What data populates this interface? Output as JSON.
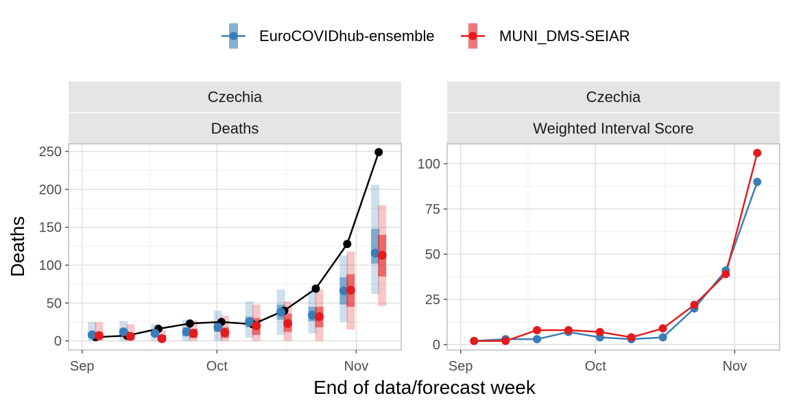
{
  "legend": {
    "items": [
      {
        "label": "EuroCOVIDhub-ensemble",
        "color": "#377eb8"
      },
      {
        "label": "MUNI_DMS-SEIAR",
        "color": "#e41a1c"
      }
    ]
  },
  "x_axis_title": "End of data/forecast week",
  "chart_data": [
    {
      "type": "line",
      "facet": [
        "Czechia",
        "Deaths"
      ],
      "ylabel": "Deaths",
      "xlabel": "End of data/forecast week",
      "x_ticks": [
        {
          "date": "2021-09-01",
          "label": "Sep"
        },
        {
          "date": "2021-10-01",
          "label": "Oct"
        },
        {
          "date": "2021-11-01",
          "label": "Nov"
        }
      ],
      "y_ticks": [
        0,
        50,
        100,
        150,
        200,
        250
      ],
      "xlim": [
        "2021-08-29",
        "2021-11-11"
      ],
      "ylim": [
        -12,
        260
      ],
      "grid": true,
      "observed": {
        "color": "#000000",
        "x": [
          "2021-09-04",
          "2021-09-11",
          "2021-09-18",
          "2021-09-25",
          "2021-10-02",
          "2021-10-09",
          "2021-10-16",
          "2021-10-23",
          "2021-10-30",
          "2021-11-06"
        ],
        "y": [
          5,
          7,
          16,
          23,
          25,
          22,
          40,
          69,
          128,
          249
        ]
      },
      "series": [
        {
          "name": "EuroCOVIDhub-ensemble",
          "color": "#377eb8",
          "x": [
            "2021-09-04",
            "2021-09-11",
            "2021-09-18",
            "2021-09-25",
            "2021-10-02",
            "2021-10-09",
            "2021-10-16",
            "2021-10-23",
            "2021-10-30",
            "2021-11-06"
          ],
          "median": [
            8,
            12,
            10,
            12,
            18,
            25,
            38,
            34,
            66,
            116
          ],
          "inner": [
            [
              5,
              11
            ],
            [
              8,
              16
            ],
            [
              6,
              14
            ],
            [
              6,
              18
            ],
            [
              12,
              26
            ],
            [
              18,
              32
            ],
            [
              28,
              48
            ],
            [
              26,
              45
            ],
            [
              48,
              84
            ],
            [
              102,
              148
            ]
          ],
          "outer": [
            [
              0,
              25
            ],
            [
              0,
              26
            ],
            [
              0,
              22
            ],
            [
              0,
              28
            ],
            [
              0,
              40
            ],
            [
              4,
              52
            ],
            [
              8,
              68
            ],
            [
              10,
              66
            ],
            [
              25,
              113
            ],
            [
              62,
              206
            ]
          ]
        },
        {
          "name": "MUNI_DMS-SEIAR",
          "color": "#e41a1c",
          "x": [
            "2021-09-04",
            "2021-09-11",
            "2021-09-18",
            "2021-09-25",
            "2021-10-02",
            "2021-10-09",
            "2021-10-16",
            "2021-10-23",
            "2021-10-30",
            "2021-11-06"
          ],
          "median": [
            7,
            6,
            3,
            10,
            11,
            20,
            23,
            32,
            67,
            113
          ],
          "inner": [
            [
              2,
              12
            ],
            [
              2,
              10
            ],
            [
              0,
              8
            ],
            [
              4,
              16
            ],
            [
              4,
              18
            ],
            [
              8,
              30
            ],
            [
              12,
              36
            ],
            [
              18,
              45
            ],
            [
              45,
              88
            ],
            [
              85,
              140
            ]
          ],
          "outer": [
            [
              0,
              25
            ],
            [
              0,
              22
            ],
            [
              0,
              14
            ],
            [
              0,
              27
            ],
            [
              0,
              33
            ],
            [
              0,
              48
            ],
            [
              0,
              52
            ],
            [
              0,
              68
            ],
            [
              15,
              118
            ],
            [
              46,
              179
            ]
          ]
        }
      ]
    },
    {
      "type": "line",
      "facet": [
        "Czechia",
        "Weighted Interval Score"
      ],
      "ylabel": "",
      "xlabel": "End of data/forecast week",
      "x_ticks": [
        {
          "date": "2021-09-01",
          "label": "Sep"
        },
        {
          "date": "2021-10-01",
          "label": "Oct"
        },
        {
          "date": "2021-11-01",
          "label": "Nov"
        }
      ],
      "y_ticks": [
        0,
        25,
        50,
        75,
        100
      ],
      "xlim": [
        "2021-08-29",
        "2021-11-11"
      ],
      "ylim": [
        -3,
        111
      ],
      "grid": true,
      "series": [
        {
          "name": "EuroCOVIDhub-ensemble",
          "color": "#377eb8",
          "x": [
            "2021-09-04",
            "2021-09-11",
            "2021-09-18",
            "2021-09-25",
            "2021-10-02",
            "2021-10-09",
            "2021-10-16",
            "2021-10-23",
            "2021-10-30",
            "2021-11-06"
          ],
          "y": [
            2,
            3,
            3,
            7,
            4,
            3,
            4,
            20,
            41,
            90
          ]
        },
        {
          "name": "MUNI_DMS-SEIAR",
          "color": "#e41a1c",
          "x": [
            "2021-09-04",
            "2021-09-11",
            "2021-09-18",
            "2021-09-25",
            "2021-10-02",
            "2021-10-09",
            "2021-10-16",
            "2021-10-23",
            "2021-10-30",
            "2021-11-06"
          ],
          "y": [
            2,
            2,
            8,
            8,
            7,
            4,
            9,
            22,
            39,
            106
          ]
        }
      ]
    }
  ]
}
